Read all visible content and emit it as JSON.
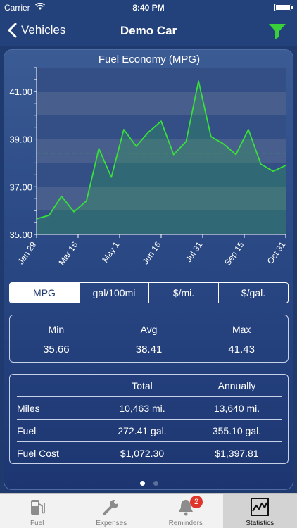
{
  "status_bar": {
    "carrier": "Carrier",
    "time": "8:40 PM"
  },
  "nav": {
    "back_label": "Vehicles",
    "title": "Demo Car"
  },
  "chart_data": {
    "type": "line",
    "title": "Fuel Economy (MPG)",
    "ylim": [
      35.0,
      42.0
    ],
    "y_ticks": [
      "41.00",
      "39.00",
      "37.00",
      "35.00"
    ],
    "x_ticks": [
      "Jan 29",
      "Mar 16",
      "May 1",
      "Jun 16",
      "Jul 31",
      "Sep 15",
      "Oct 31"
    ],
    "average": 38.41,
    "series": [
      {
        "values": [
          35.66,
          35.8,
          36.6,
          35.95,
          36.4,
          38.6,
          37.4,
          39.4,
          38.7,
          39.3,
          39.75,
          38.35,
          38.9,
          41.43,
          39.1,
          38.8,
          38.35,
          39.4,
          37.95,
          37.65,
          37.9
        ]
      }
    ],
    "colors": {
      "line": "#39e03a",
      "average": "#3fbf3f"
    }
  },
  "segments": [
    "MPG",
    "gal/100mi",
    "$/mi.",
    "$/gal."
  ],
  "active_segment": "MPG",
  "stats": {
    "min_label": "Min",
    "min_value": "35.66",
    "avg_label": "Avg",
    "avg_value": "38.41",
    "max_label": "Max",
    "max_value": "41.43"
  },
  "totals": {
    "header": [
      "",
      "Total",
      "Annually"
    ],
    "rows": [
      [
        "Miles",
        "10,463 mi.",
        "13,640 mi."
      ],
      [
        "Fuel",
        "272.41 gal.",
        "355.10 gal."
      ],
      [
        "Fuel Cost",
        "$1,072.30",
        "$1,397.81"
      ]
    ]
  },
  "tabs": [
    {
      "label": "Fuel",
      "icon": "fuel-pump-icon"
    },
    {
      "label": "Expenses",
      "icon": "wrench-icon"
    },
    {
      "label": "Reminders",
      "icon": "bell-icon",
      "badge": "2"
    },
    {
      "label": "Statistics",
      "icon": "statistics-chart-icon",
      "active": true
    }
  ],
  "colors": {
    "background": "#1f3a6e",
    "accent_green": "#39e03a",
    "badge": "#e0352b"
  }
}
